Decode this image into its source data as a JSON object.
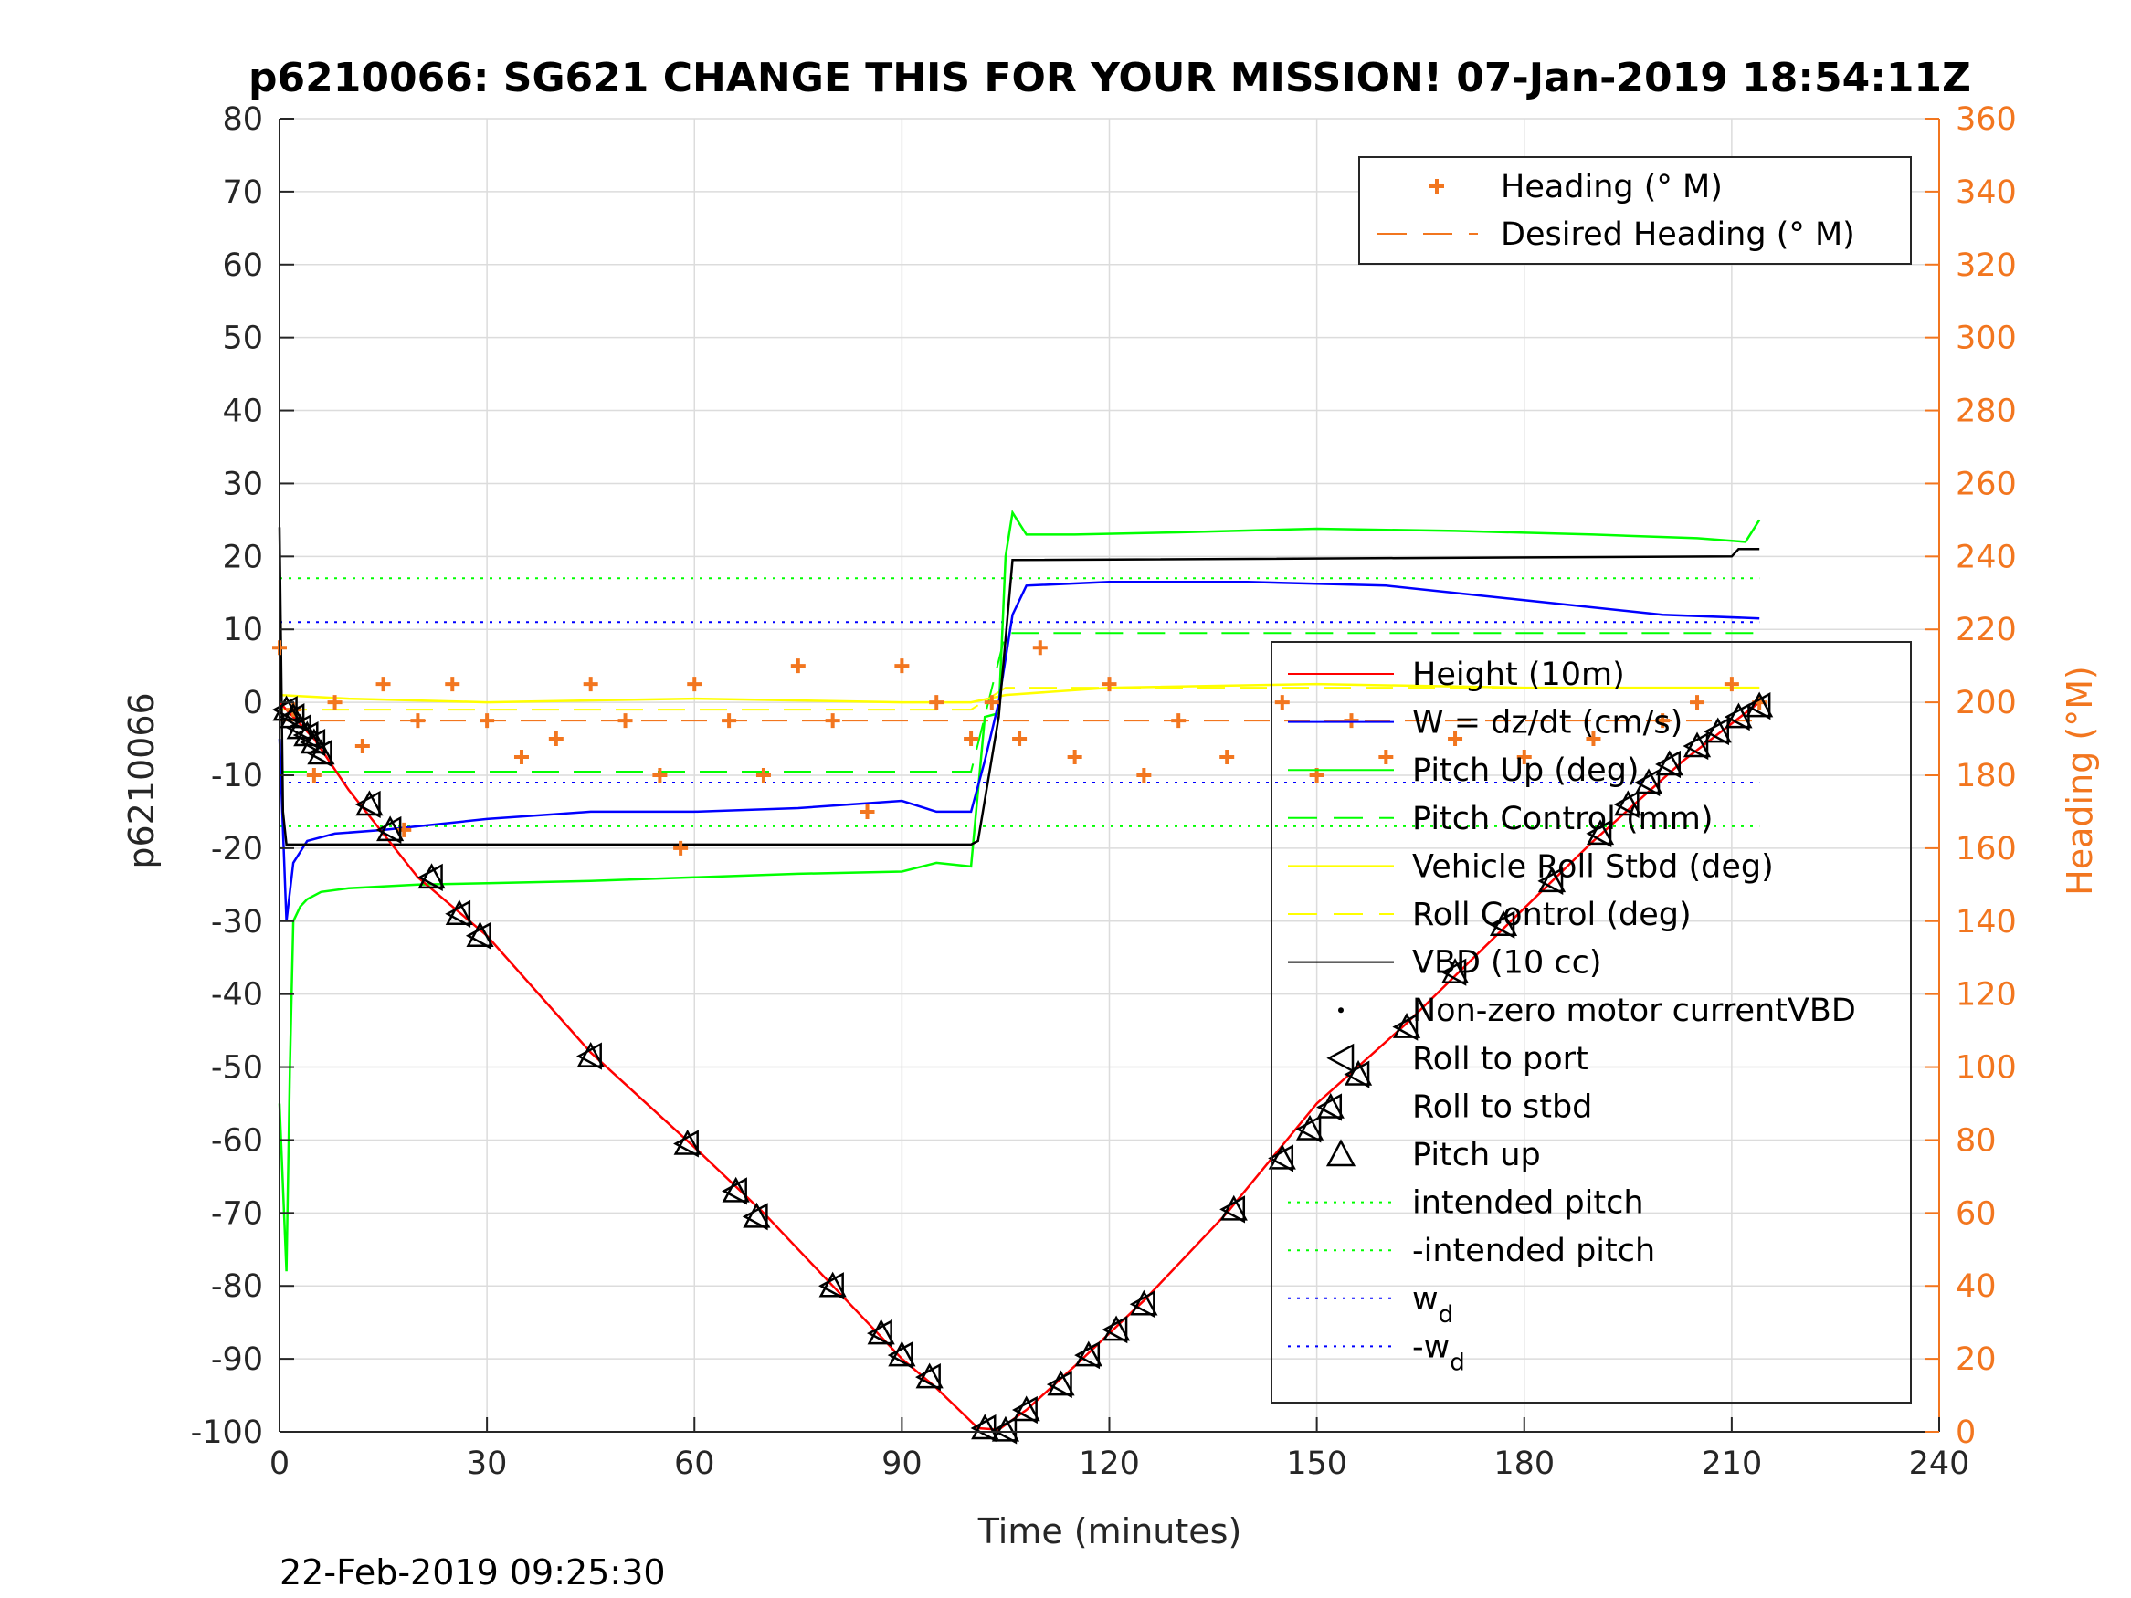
{
  "chart_data": {
    "type": "line",
    "title": "p6210066: SG621 CHANGE THIS FOR YOUR MISSION! 07-Jan-2019 18:54:11Z",
    "xlabel": "Time (minutes)",
    "ylabel": "p6210066",
    "ylabel_right": "Heading (°M)",
    "footer": "22-Feb-2019 09:25:30",
    "xlim": [
      0,
      240
    ],
    "ylim": [
      -100,
      80
    ],
    "ylim_right": [
      0,
      360
    ],
    "x_ticks": [
      0,
      30,
      60,
      90,
      120,
      150,
      180,
      210,
      240
    ],
    "y_ticks": [
      -100,
      -90,
      -80,
      -70,
      -60,
      -50,
      -40,
      -30,
      -20,
      -10,
      0,
      10,
      20,
      30,
      40,
      50,
      60,
      70,
      80
    ],
    "y_ticks_right": [
      0,
      20,
      40,
      60,
      80,
      100,
      120,
      140,
      160,
      180,
      200,
      220,
      240,
      260,
      280,
      300,
      320,
      340,
      360
    ],
    "grid": true,
    "colors": {
      "height": "#ff0000",
      "w": "#0000ff",
      "pitch": "#00ff00",
      "roll": "#ffff00",
      "vbd": "#000000",
      "heading": "#f2761f",
      "axis": "#262626"
    },
    "legend_right_axis": {
      "placement": "top-right",
      "entries": [
        "Heading (° M)",
        "Desired Heading (° M)"
      ]
    },
    "legend_left_axis": {
      "placement": "bottom-right",
      "entries": [
        "Height (10m)",
        "W = dz/dt (cm/s)",
        "Pitch Up (deg)",
        "Pitch Control (mm)",
        "Vehicle Roll Stbd (deg)",
        "Roll Control (deg)",
        "VBD (10 cc)",
        "Non-zero motor currentVBD",
        "Roll to port",
        "Roll to stbd",
        "Pitch up",
        "intended pitch",
        "-intended pitch",
        "w",
        "-w"
      ],
      "subscript": "d"
    },
    "series": [
      {
        "name": "Height (10m)",
        "x": [
          0,
          5,
          10,
          20,
          30,
          45,
          60,
          70,
          80,
          90,
          95,
          101,
          104,
          108,
          115,
          125,
          137,
          150,
          163,
          177,
          190,
          203,
          214
        ],
        "y": [
          0,
          -5,
          -12,
          -24,
          -32,
          -48,
          -61,
          -70,
          -80,
          -90,
          -94,
          -99.5,
          -99.7,
          -97,
          -91,
          -82,
          -70,
          -55,
          -44,
          -31,
          -19,
          -8,
          0
        ]
      },
      {
        "name": "W = dz/dt (cm/s)",
        "x": [
          0,
          1,
          2,
          4,
          8,
          15,
          30,
          45,
          60,
          75,
          90,
          95,
          100,
          102,
          104,
          106,
          108,
          120,
          140,
          160,
          180,
          200,
          214
        ],
        "y": [
          -5,
          -30,
          -22,
          -19,
          -18,
          -17.5,
          -16,
          -15,
          -15,
          -14.5,
          -13.5,
          -15,
          -15,
          -8,
          0,
          12,
          16,
          16.5,
          16.5,
          16,
          14,
          12,
          11.5
        ]
      },
      {
        "name": "Pitch Up (deg)",
        "x": [
          0,
          1,
          1.5,
          2,
          3,
          4,
          6,
          10,
          20,
          30,
          45,
          60,
          75,
          90,
          95,
          100,
          102,
          104,
          105,
          106,
          108,
          115,
          130,
          150,
          170,
          190,
          205,
          212,
          214
        ],
        "y": [
          -55,
          -78,
          -50,
          -30,
          -28,
          -27,
          -26,
          -25.5,
          -25,
          -24.8,
          -24.5,
          -24,
          -23.5,
          -23.2,
          -22,
          -22.5,
          -2,
          -1.5,
          20,
          26,
          23,
          23,
          23.3,
          23.8,
          23.5,
          23,
          22.5,
          22,
          25
        ]
      },
      {
        "name": "Pitch Control (mm)",
        "x": [
          0,
          5,
          100,
          105,
          214
        ],
        "y": [
          -9.5,
          -9.5,
          -9.5,
          9.5,
          9.5
        ]
      },
      {
        "name": "Vehicle Roll Stbd (deg)",
        "x": [
          0,
          10,
          30,
          60,
          90,
          100,
          105,
          120,
          150,
          180,
          214
        ],
        "y": [
          1,
          0.5,
          0,
          0.5,
          0,
          0,
          1,
          2,
          2.5,
          2,
          2
        ]
      },
      {
        "name": "Roll Control (deg)",
        "x": [
          0,
          100,
          105,
          214
        ],
        "y": [
          -1,
          -1,
          2,
          2
        ]
      },
      {
        "name": "VBD (10 cc)",
        "x": [
          0,
          0.5,
          1,
          2,
          100,
          101,
          104,
          106,
          210,
          211,
          214
        ],
        "y": [
          24,
          -15,
          -19.5,
          -19.5,
          -19.5,
          -19,
          -2,
          19.5,
          20,
          21,
          21
        ]
      },
      {
        "name": "Heading (° M)",
        "x": [
          0,
          2,
          5,
          8,
          12,
          15,
          18,
          20,
          25,
          30,
          35,
          40,
          45,
          50,
          55,
          58,
          60,
          65,
          70,
          75,
          80,
          85,
          90,
          95,
          100,
          103,
          107,
          110,
          115,
          120,
          125,
          130,
          137,
          145,
          150,
          155,
          160,
          170,
          180,
          190,
          200,
          205,
          210,
          214
        ],
        "y": [
          215,
          198,
          180,
          200,
          188,
          205,
          165,
          195,
          205,
          195,
          185,
          190,
          205,
          195,
          180,
          160,
          205,
          195,
          180,
          210,
          195,
          170,
          210,
          200,
          190,
          200,
          190,
          215,
          185,
          205,
          180,
          195,
          185,
          200,
          180,
          195,
          185,
          190,
          185,
          190,
          195,
          200,
          205,
          200
        ]
      },
      {
        "name": "Desired Heading (° M)",
        "x": [
          0,
          214
        ],
        "y": [
          195,
          195
        ]
      },
      {
        "name": "intended pitch",
        "x": [
          0,
          214
        ],
        "y": [
          17,
          17
        ]
      },
      {
        "name": "-intended pitch",
        "x": [
          0,
          214
        ],
        "y": [
          -17,
          -17
        ]
      },
      {
        "name": "w_d",
        "x": [
          0,
          214
        ],
        "y": [
          11,
          11
        ]
      },
      {
        "name": "-w_d",
        "x": [
          0,
          214
        ],
        "y": [
          -11,
          -11
        ]
      }
    ],
    "markers": {
      "Roll to port": {
        "x": [
          1,
          2,
          3,
          4,
          5,
          6,
          13,
          16,
          22,
          26,
          29,
          45,
          59,
          66,
          69,
          80,
          87,
          90,
          94,
          102,
          105,
          108,
          113,
          117,
          121,
          125,
          138,
          145,
          149,
          152,
          156,
          163,
          170,
          177,
          184,
          191,
          195,
          198,
          201,
          205,
          208,
          211,
          214
        ],
        "y": [
          -1,
          -2,
          -3.5,
          -4.5,
          -5.5,
          -7,
          -14,
          -17.5,
          -24,
          -29,
          -32,
          -48.5,
          -60.5,
          -67,
          -70.5,
          -80,
          -86.5,
          -89.5,
          -92.5,
          -99.5,
          -99.8,
          -97,
          -93.5,
          -89.5,
          -86,
          -82.5,
          -69.5,
          -62.5,
          -58.5,
          -55.5,
          -51,
          -44.5,
          -37,
          -30.5,
          -24.5,
          -18,
          -14,
          -11,
          -8.5,
          -6,
          -4,
          -2,
          -0.5
        ]
      },
      "Pitch up": {
        "x": [
          1,
          2,
          3,
          4,
          5,
          6,
          13,
          16,
          22,
          26,
          29,
          45,
          59,
          66,
          69,
          80,
          87,
          90,
          94,
          102,
          105,
          108,
          113,
          117,
          121,
          125,
          138,
          145,
          149,
          152,
          156,
          163,
          170,
          177,
          184,
          191,
          195,
          198,
          201,
          205,
          208,
          211,
          214
        ],
        "y": [
          -1,
          -2,
          -3.5,
          -4.5,
          -5.5,
          -7,
          -14,
          -17.5,
          -24,
          -29,
          -32,
          -48.5,
          -60.5,
          -67,
          -70.5,
          -80,
          -86.5,
          -89.5,
          -92.5,
          -99.5,
          -99.8,
          -97,
          -93.5,
          -89.5,
          -86,
          -82.5,
          -69.5,
          -62.5,
          -58.5,
          -55.5,
          -51,
          -44.5,
          -37,
          -30.5,
          -24.5,
          -18,
          -14,
          -11,
          -8.5,
          -6,
          -4,
          -2,
          -0.5
        ]
      }
    }
  }
}
